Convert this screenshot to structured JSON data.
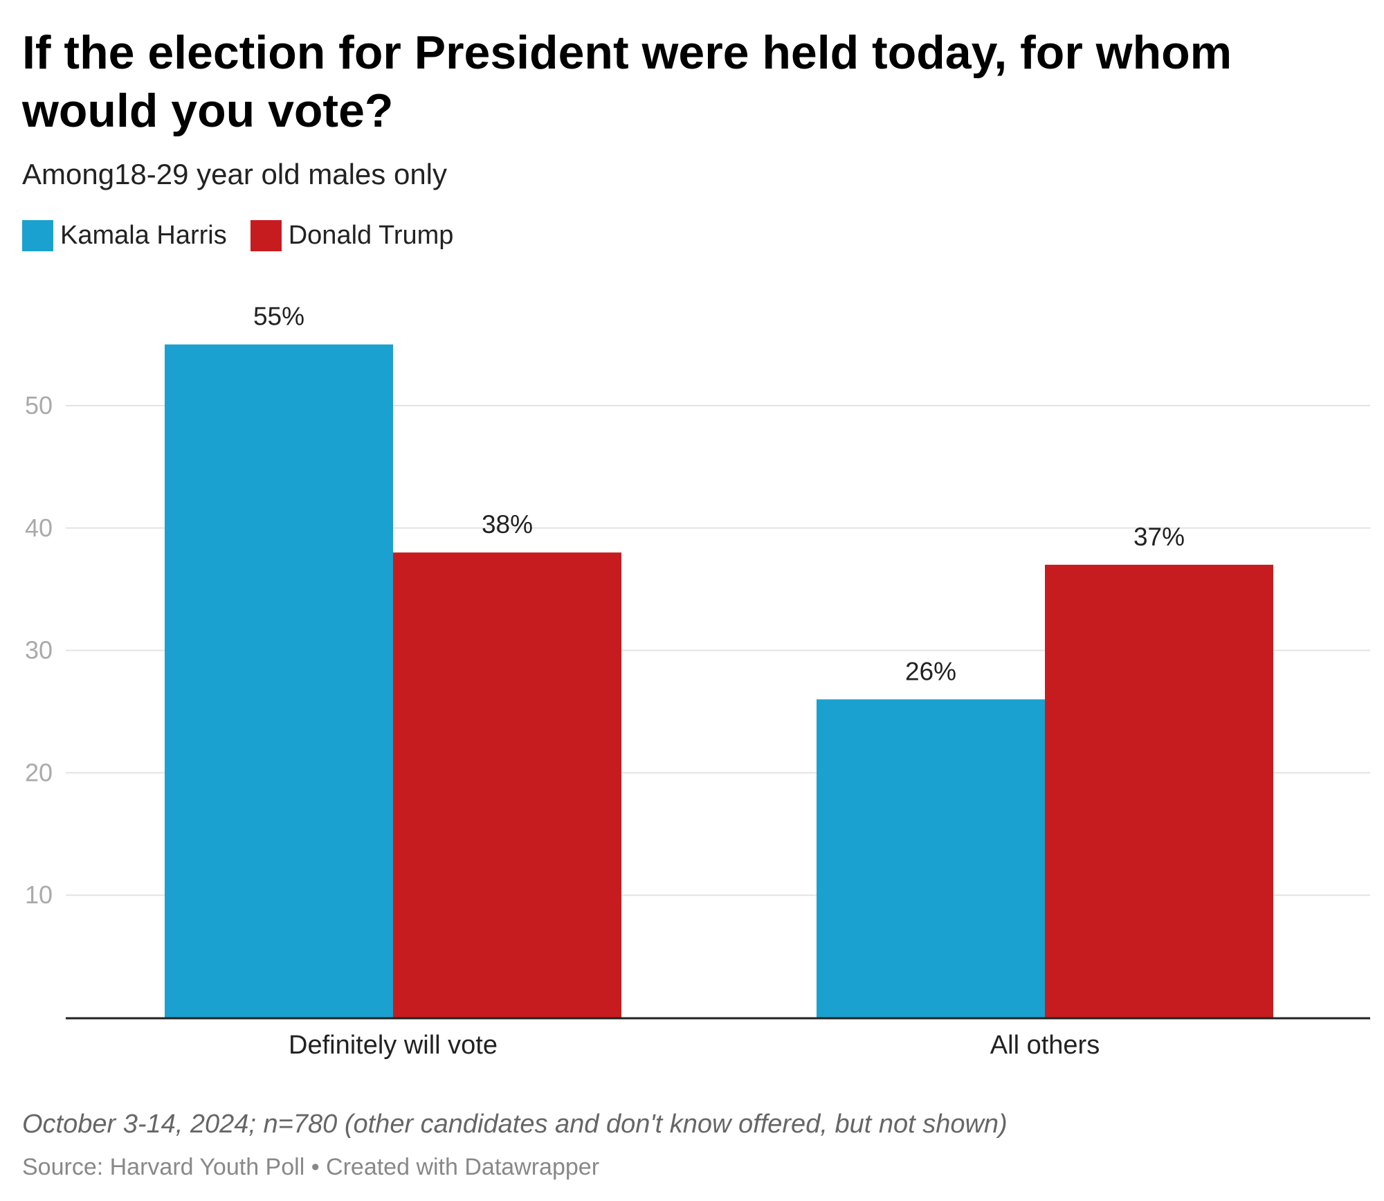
{
  "title": "If the election for President were held today, for whom would you vote?",
  "subtitle": "Among18-29 year old males only",
  "footer": {
    "note": "October 3-14, 2024; n=780 (other candidates and don't know offered, but not shown)",
    "source": "Source: Harvard Youth Poll • Created with Datawrapper"
  },
  "colors": {
    "harris": "#1aa1cf",
    "trump": "#c71c1f"
  },
  "chart_data": {
    "type": "bar",
    "title": "If the election for President were held today, for whom would you vote?",
    "subtitle": "Among18-29 year old males only",
    "categories": [
      "Definitely will vote",
      "All others"
    ],
    "series": [
      {
        "name": "Kamala Harris",
        "color": "#1aa1cf",
        "values": [
          55,
          26
        ],
        "labels": [
          "55%",
          "26%"
        ]
      },
      {
        "name": "Donald Trump",
        "color": "#c71c1f",
        "values": [
          38,
          37
        ],
        "labels": [
          "38%",
          "37%"
        ]
      }
    ],
    "yticks": [
      10,
      20,
      30,
      40,
      50
    ],
    "ylim": [
      0,
      58
    ],
    "grid": true,
    "legend": "top-left",
    "xlabel": "",
    "ylabel": ""
  }
}
